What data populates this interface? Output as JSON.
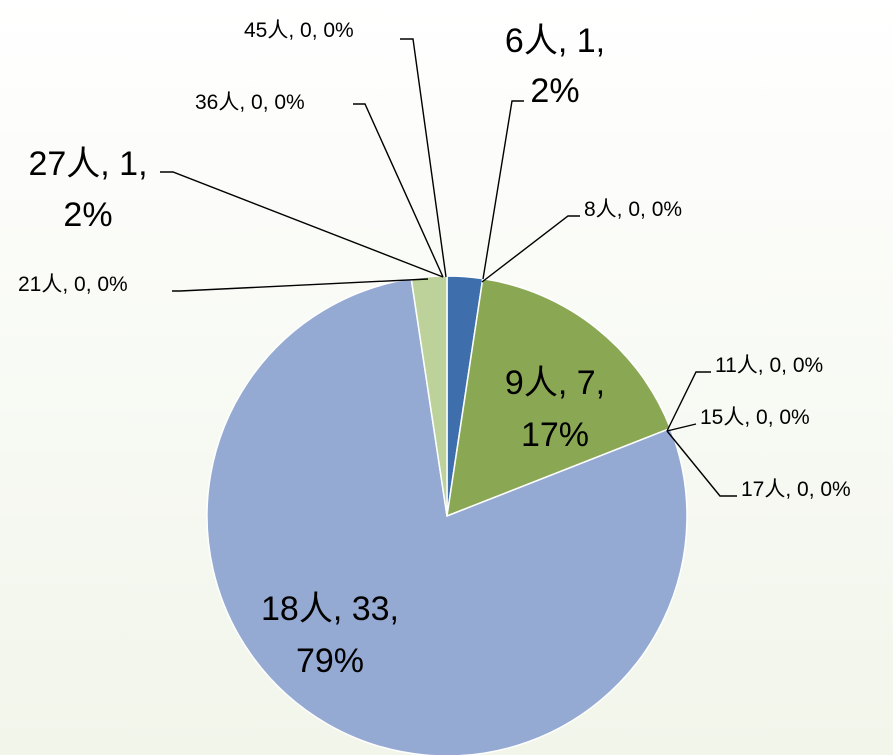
{
  "chart_data": {
    "type": "pie",
    "title": "",
    "slices": [
      {
        "label": "6人",
        "value": 1,
        "percent": "2%",
        "color": "#3e6fac"
      },
      {
        "label": "8人",
        "value": 0,
        "percent": "0%",
        "color": "#c0504d"
      },
      {
        "label": "9人",
        "value": 7,
        "percent": "17%",
        "color": "#8aa854"
      },
      {
        "label": "11人",
        "value": 0,
        "percent": "0%",
        "color": "#7f63a1"
      },
      {
        "label": "15人",
        "value": 0,
        "percent": "0%",
        "color": "#4bacc6"
      },
      {
        "label": "17人",
        "value": 0,
        "percent": "0%",
        "color": "#f79646"
      },
      {
        "label": "18人",
        "value": 33,
        "percent": "79%",
        "color": "#95aad2"
      },
      {
        "label": "21人",
        "value": 0,
        "percent": "0%",
        "color": "#d99694"
      },
      {
        "label": "27人",
        "value": 1,
        "percent": "2%",
        "color": "#bcd29a"
      },
      {
        "label": "36人",
        "value": 0,
        "percent": "0%",
        "color": "#b3a2c7"
      },
      {
        "label": "45人",
        "value": 0,
        "percent": "0%",
        "color": "#93cddd"
      }
    ],
    "legend": "none"
  }
}
